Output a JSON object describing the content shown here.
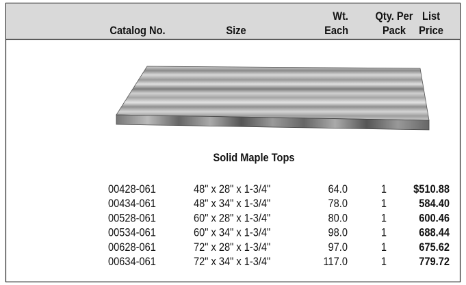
{
  "table": {
    "header": [
      [
        "Catalog No."
      ],
      [
        "Size"
      ],
      [
        "Wt.",
        "Each"
      ],
      [
        "Qty. Per",
        "Pack"
      ],
      [
        "List",
        "Price"
      ]
    ],
    "caption": "Solid Maple Tops",
    "rows": [
      [
        "00428-061",
        "48\" x 28\" x 1-3/4\"",
        "64.0",
        "1",
        "$510.88"
      ],
      [
        "00434-061",
        "48\" x 34\" x 1-3/4\"",
        "78.0",
        "1",
        "584.40"
      ],
      [
        "00528-061",
        "60\" x 28\" x 1-3/4\"",
        "80.0",
        "1",
        "600.46"
      ],
      [
        "00534-061",
        "60\" x 34\" x 1-3/4\"",
        "98.0",
        "1",
        "688.44"
      ],
      [
        "00628-061",
        "72\" x 28\" x 1-3/4\"",
        "97.0",
        "1",
        "675.62"
      ],
      [
        "00634-061",
        "72\" x 34\" x 1-3/4\"",
        "117.0",
        "1",
        "779.72"
      ]
    ]
  }
}
